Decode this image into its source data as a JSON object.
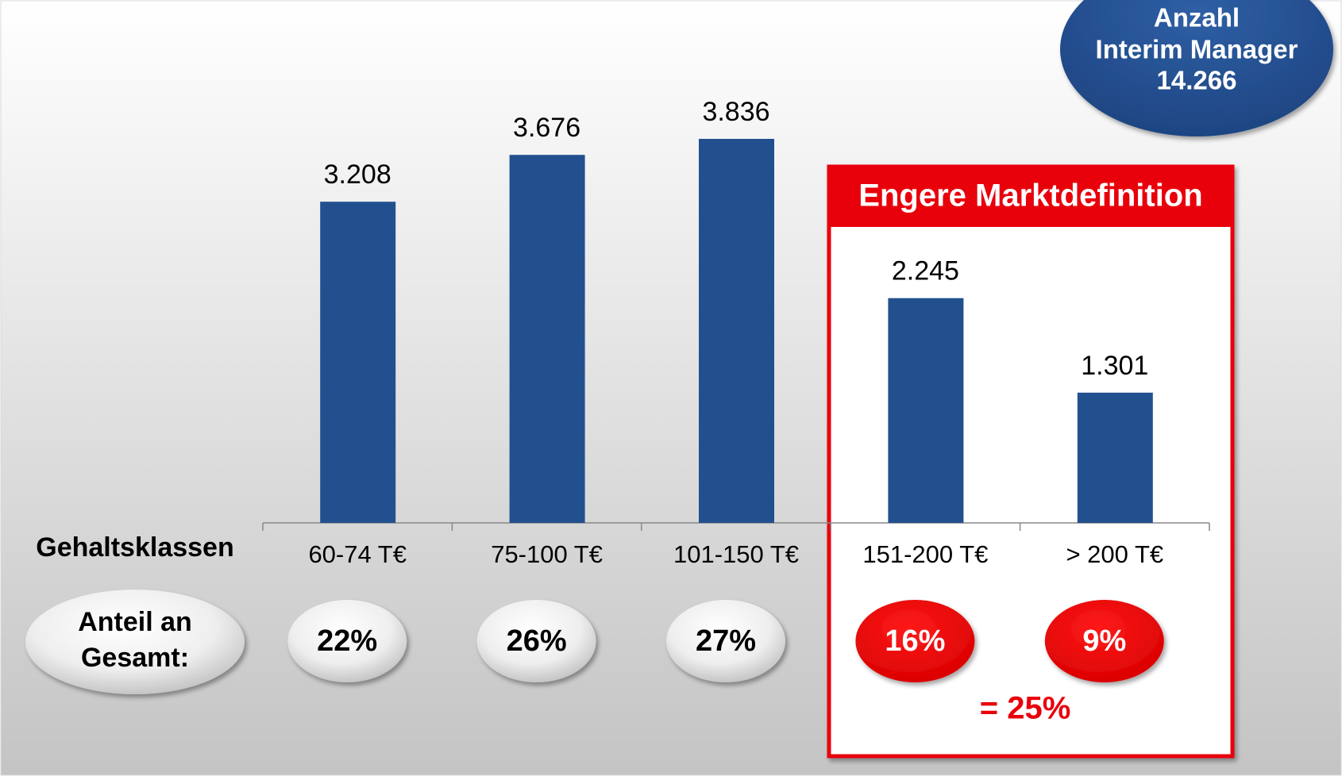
{
  "chart_data": {
    "type": "bar",
    "categories": [
      "60-74 T€",
      "75-100 T€",
      "101-150 T€",
      "151-200 T€",
      "> 200 T€"
    ],
    "values": [
      3208,
      3676,
      3836,
      2245,
      1301
    ],
    "value_labels": [
      "3.208",
      "3.676",
      "3.836",
      "2.245",
      "1.301"
    ],
    "color": "#22508f",
    "category_axis_label": "Gehaltsklassen",
    "share_label": [
      "Anteil an",
      "Gesamt:"
    ],
    "shares": {
      "values": [
        22,
        26,
        27,
        16,
        9
      ],
      "value_labels": [
        "22%",
        "26%",
        "27%",
        "16%",
        "9%"
      ],
      "colors": [
        "gray",
        "gray",
        "gray",
        "red",
        "red"
      ]
    },
    "highlight_box": {
      "title": "Engere Marktdefinition",
      "sum_label": "= 25%"
    },
    "total_label": [
      "Anzahl",
      "Interim Manager",
      "14.266"
    ]
  }
}
